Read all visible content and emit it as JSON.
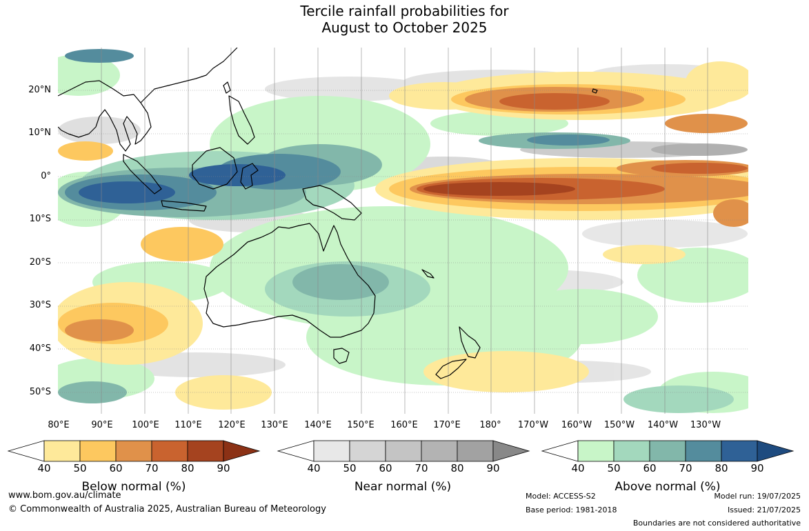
{
  "title": {
    "line1": "Tercile rainfall probabilities for",
    "line2": "August to October 2025"
  },
  "map": {
    "lat_labels": [
      "20°N",
      "10°N",
      "0°",
      "10°S",
      "20°S",
      "30°S",
      "40°S",
      "50°S"
    ],
    "lon_labels": [
      "80°E",
      "90°E",
      "100°E",
      "110°E",
      "120°E",
      "130°E",
      "140°E",
      "150°E",
      "160°E",
      "170°E",
      "180°",
      "170°W",
      "160°W",
      "150°W",
      "140°W",
      "130°W"
    ]
  },
  "colorbars": [
    {
      "name": "below",
      "label": "Below normal (%)",
      "ticks": [
        "40",
        "50",
        "60",
        "70",
        "80",
        "90"
      ],
      "colors": [
        "#ffffff",
        "#fee99a",
        "#fdc85f",
        "#e0914a",
        "#c9632f",
        "#a5431f",
        "#8b3115"
      ]
    },
    {
      "name": "near",
      "label": "Near normal (%)",
      "ticks": [
        "40",
        "50",
        "60",
        "70",
        "80",
        "90"
      ],
      "colors": [
        "#ffffff",
        "#e8e8e8",
        "#d5d5d5",
        "#c4c4c4",
        "#b3b3b3",
        "#a2a2a2",
        "#888888"
      ]
    },
    {
      "name": "above",
      "label": "Above normal (%)",
      "ticks": [
        "40",
        "50",
        "60",
        "70",
        "80",
        "90"
      ],
      "colors": [
        "#ffffff",
        "#c8f5c8",
        "#a3d8bd",
        "#82b7aa",
        "#548c9d",
        "#2f6196",
        "#1e4b7f"
      ]
    }
  ],
  "footer": {
    "website": "www.bom.gov.au/climate",
    "copyright": "© Commonwealth of Australia 2025, Australian Bureau of Meteorology",
    "model": "Model: ACCESS-S2",
    "base_period": "Base period: 1981-2018",
    "model_run": "Model run: 19/07/2025",
    "issued": "Issued: 21/07/2025",
    "disclaimer": "Boundaries are not considered authoritative"
  }
}
